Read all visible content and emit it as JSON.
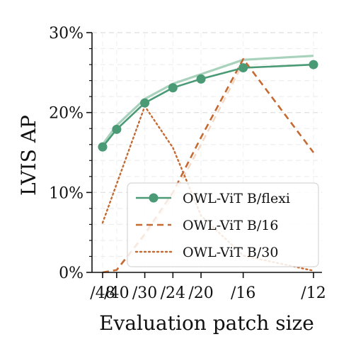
{
  "chart_data": {
    "type": "line",
    "xlabel": "Evaluation patch size",
    "ylabel": "LVIS AP",
    "x_ticks": [
      "/48",
      "/40",
      "/30",
      "/24",
      "/20",
      "/16",
      "/12"
    ],
    "x_values": [
      48,
      40,
      30,
      24,
      20,
      16,
      12
    ],
    "x_scale": "reciprocal",
    "ylim": [
      0,
      30
    ],
    "y_ticks": [
      {
        "value": 0,
        "label": "0%"
      },
      {
        "value": 10,
        "label": "10%"
      },
      {
        "value": 20,
        "label": "20%"
      },
      {
        "value": 30,
        "label": "30%"
      }
    ],
    "y_minor_grid_step": 2,
    "grid": true,
    "legend_position": "lower-right",
    "series": [
      {
        "name": "OWL-ViT B/flexi",
        "style": "solid-markers",
        "color": "#4a9a76",
        "x": [
          48,
          40,
          30,
          24,
          20,
          16,
          12
        ],
        "values": [
          15.7,
          17.9,
          21.2,
          23.1,
          24.2,
          25.6,
          26.0
        ]
      },
      {
        "name": "",
        "style": "solid-faint",
        "color": "#a9d2bd",
        "x": [
          48,
          40,
          30,
          24,
          20,
          16,
          12
        ],
        "values": [
          16.0,
          18.4,
          21.7,
          23.6,
          24.8,
          26.6,
          27.1
        ]
      },
      {
        "name": "OWL-ViT B/16",
        "style": "dashed",
        "color": "#c46a32",
        "x": [
          48,
          40,
          30,
          24,
          20,
          16,
          12
        ],
        "values": [
          0.0,
          0.3,
          4.8,
          10.0,
          16.9,
          26.7,
          15.0
        ]
      },
      {
        "name": "",
        "style": "dashed-faint",
        "color": "#f1d7c4",
        "x": [
          48,
          40,
          30,
          24,
          20,
          16
        ],
        "values": [
          0.0,
          0.3,
          4.5,
          9.5,
          16.0,
          26.2
        ]
      },
      {
        "name": "OWL-ViT B/30",
        "style": "dotted",
        "color": "#c46a32",
        "x": [
          48,
          30,
          24,
          20,
          16,
          12
        ],
        "values": [
          6.2,
          20.8,
          15.6,
          7.1,
          2.1,
          0.2
        ]
      }
    ],
    "legend_entries": [
      "OWL-ViT B/flexi",
      "OWL-ViT B/16",
      "OWL-ViT B/30"
    ]
  }
}
